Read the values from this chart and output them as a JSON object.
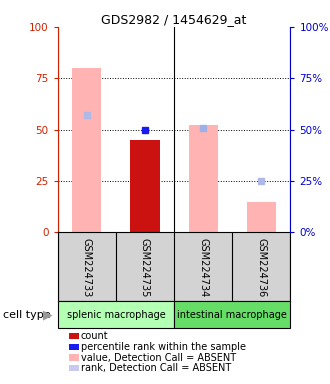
{
  "title": "GDS2982 / 1454629_at",
  "samples": [
    "GSM224733",
    "GSM224735",
    "GSM224734",
    "GSM224736"
  ],
  "bar_values": [
    80,
    45,
    52,
    15
  ],
  "bar_colors": [
    "#ffb3b3",
    "#cc1111",
    "#ffb3b3",
    "#ffb3b3"
  ],
  "rank_values": [
    57,
    50,
    51,
    25
  ],
  "rank_colors": [
    "#b0b8e8",
    "#1a1aee",
    "#9db0e8",
    "#b0b8e8"
  ],
  "ylim": [
    0,
    100
  ],
  "yticks": [
    0,
    25,
    50,
    75,
    100
  ],
  "left_axis_color": "#cc2200",
  "right_axis_color": "#0000cc",
  "bg_sample_box": "#d3d3d3",
  "bg_group_splenic": "#b3ffb3",
  "bg_group_intestinal": "#66dd66",
  "group_label_splenic": "splenic macrophage",
  "group_label_intestinal": "intestinal macrophage",
  "cell_type_label": "cell type",
  "legend_items": [
    {
      "color": "#cc1111",
      "label": "count"
    },
    {
      "color": "#1a1aee",
      "label": "percentile rank within the sample"
    },
    {
      "color": "#ffb3b3",
      "label": "value, Detection Call = ABSENT"
    },
    {
      "color": "#c8c8f0",
      "label": "rank, Detection Call = ABSENT"
    }
  ]
}
